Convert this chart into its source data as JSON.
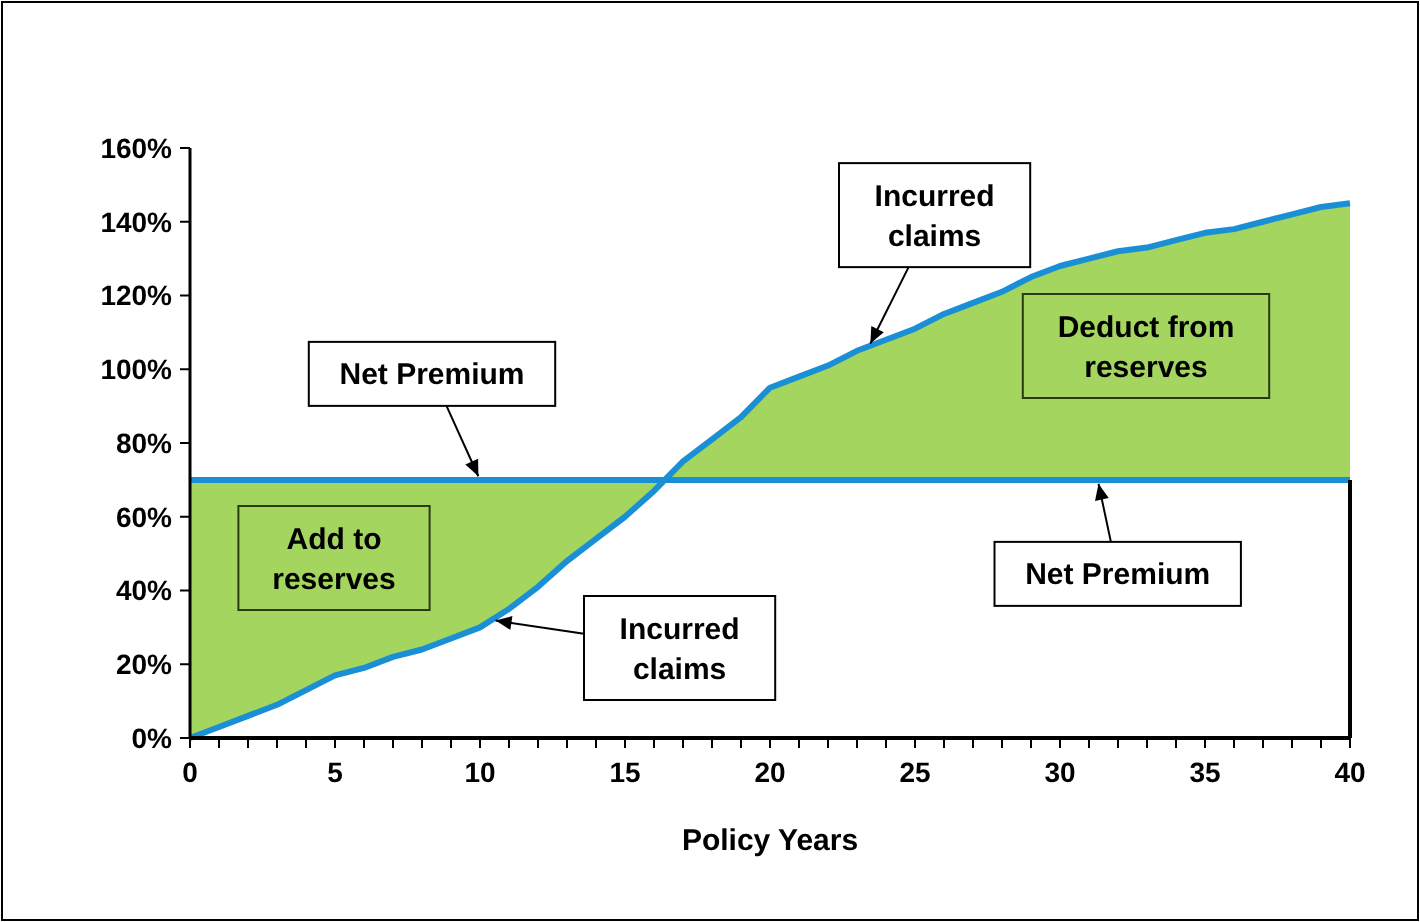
{
  "chart_data": {
    "type": "line",
    "xlabel": "Policy Years",
    "x": [
      0,
      1,
      2,
      3,
      4,
      5,
      6,
      7,
      8,
      9,
      10,
      11,
      12,
      13,
      14,
      15,
      16,
      17,
      18,
      19,
      20,
      21,
      22,
      23,
      24,
      25,
      26,
      27,
      28,
      29,
      30,
      31,
      32,
      33,
      34,
      35,
      36,
      37,
      38,
      39,
      40
    ],
    "series": [
      {
        "color": "#1a8fd6",
        "values": [
          0,
          3,
          6,
          9,
          13,
          17,
          19,
          22,
          24,
          27,
          30,
          35,
          41,
          48,
          54,
          60,
          67,
          75,
          81,
          87,
          95,
          98,
          101,
          105,
          108,
          111,
          115,
          118,
          121,
          125,
          128,
          130,
          132,
          133,
          135,
          137,
          138,
          140,
          142,
          144,
          145
        ]
      }
    ],
    "xlim": [
      0,
      40
    ],
    "xticks": [
      0,
      5,
      10,
      15,
      20,
      25,
      30,
      35,
      40
    ],
    "ylim": [
      0,
      160
    ],
    "yticks": [
      {
        "value": 0,
        "label": "0%"
      },
      {
        "value": 20,
        "label": "20%"
      },
      {
        "value": 40,
        "label": "40%"
      },
      {
        "value": 60,
        "label": "60%"
      },
      {
        "value": 80,
        "label": "80%"
      },
      {
        "value": 100,
        "label": "100%"
      },
      {
        "value": 120,
        "label": "120%"
      },
      {
        "value": 140,
        "label": "140%"
      },
      {
        "value": 160,
        "label": "160%"
      }
    ],
    "ref_lines": [
      {
        "axis": "y",
        "value": 70,
        "color": "#1a8fd6"
      }
    ],
    "annotations": [
      {
        "text": "Net Premium",
        "x": 10,
        "y": 70
      },
      {
        "text": "Net Premium",
        "x": 31.3,
        "y": 70
      },
      {
        "text": "Incurred claims",
        "x": 10.4,
        "y": 32
      },
      {
        "text": "Incurred claims",
        "x": 23.4,
        "y": 106
      },
      "Add to reserves",
      "Deduct from reserves"
    ],
    "grid": false
  }
}
